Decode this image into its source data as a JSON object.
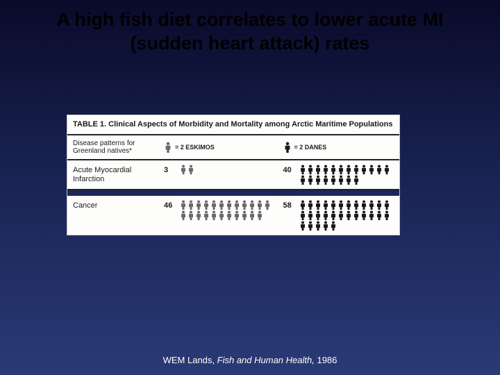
{
  "title": {
    "line1": "A high fish diet correlates to lower acute MI",
    "line2": "(sudden heart attack) rates"
  },
  "table": {
    "label": "TABLE 1.",
    "caption": "Clinical Aspects of Morbidity and Mortality among Arctic Maritime Populations",
    "subhead": "Disease patterns for Greenland natives*",
    "legend": {
      "eskimo": {
        "text": "= 2 ESKIMOS",
        "color": "#6a6a6a"
      },
      "dane": {
        "text": "= 2 DANES",
        "color": "#1a1a1a"
      }
    },
    "rows": [
      {
        "label": "Acute Myocardial Infarction",
        "eskimo": {
          "value": "3",
          "count": 2
        },
        "dane": {
          "value": "40",
          "count": 20
        }
      },
      {
        "label": "Cancer",
        "eskimo": {
          "value": "46",
          "count": 23
        },
        "dane": {
          "value": "58",
          "count": 29
        }
      }
    ]
  },
  "citation": {
    "author": "WEM Lands,",
    "title": "Fish and Human Health,",
    "year": "1986"
  },
  "colors": {
    "title_text": "#000000",
    "table_bg": "#fdfdfc",
    "table_text": "#1a1a1a",
    "eskimo_icon": "#6a6a6a",
    "dane_icon": "#1a1a1a",
    "citation_text": "#ffffff"
  }
}
